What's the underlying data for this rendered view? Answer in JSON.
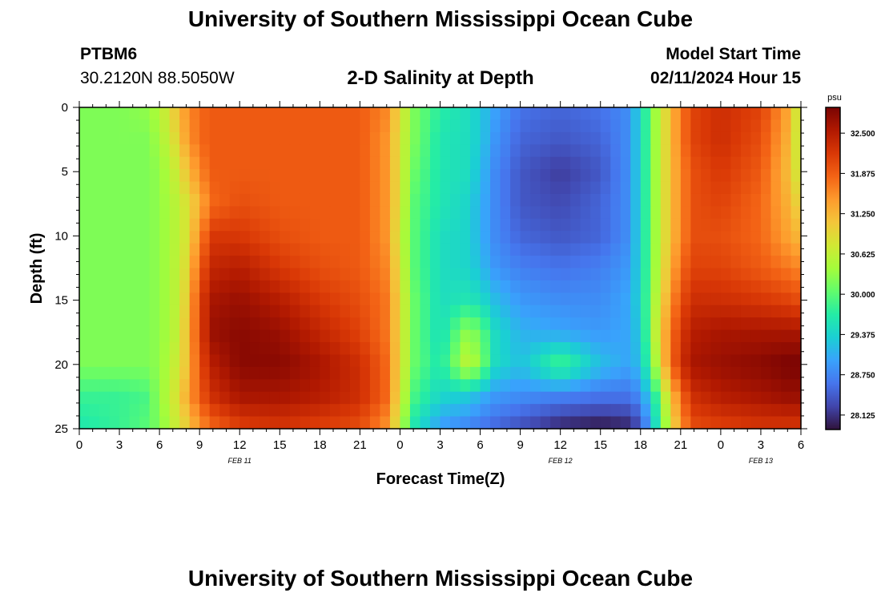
{
  "header": {
    "title": "University of Southern Mississippi Ocean Cube",
    "station": "PTBM6",
    "coordinates": "30.2120N  88.5050W",
    "subtitle": "2-D Salinity at Depth",
    "model_label": "Model Start Time",
    "model_time": "02/11/2024 Hour 15"
  },
  "footer": {
    "title": "University of Southern Mississippi Ocean Cube"
  },
  "chart_data": {
    "type": "heatmap",
    "title": "2-D Salinity at Depth",
    "xlabel": "Forecast Time(Z)",
    "ylabel": "Depth (ft)",
    "x_range_hours": [
      0,
      54
    ],
    "y_range_ft": [
      0,
      25
    ],
    "x_ticks": [
      {
        "hour": 0,
        "label": "0"
      },
      {
        "hour": 3,
        "label": "3"
      },
      {
        "hour": 6,
        "label": "6"
      },
      {
        "hour": 9,
        "label": "9"
      },
      {
        "hour": 12,
        "label": "12"
      },
      {
        "hour": 15,
        "label": "15"
      },
      {
        "hour": 18,
        "label": "18"
      },
      {
        "hour": 21,
        "label": "21"
      },
      {
        "hour": 24,
        "label": "0"
      },
      {
        "hour": 27,
        "label": "3"
      },
      {
        "hour": 30,
        "label": "6"
      },
      {
        "hour": 33,
        "label": "9"
      },
      {
        "hour": 36,
        "label": "12"
      },
      {
        "hour": 39,
        "label": "15"
      },
      {
        "hour": 42,
        "label": "18"
      },
      {
        "hour": 45,
        "label": "21"
      },
      {
        "hour": 48,
        "label": "0"
      },
      {
        "hour": 51,
        "label": "3"
      },
      {
        "hour": 54,
        "label": "6"
      }
    ],
    "date_labels": [
      {
        "hour": 12,
        "label": "FEB 11"
      },
      {
        "hour": 36,
        "label": "FEB 12"
      },
      {
        "hour": 51,
        "label": "FEB 13"
      }
    ],
    "y_ticks": [
      0,
      5,
      10,
      15,
      20,
      25
    ],
    "colorbar": {
      "unit": "psu",
      "min": 27.9,
      "max": 32.9,
      "ticks": [
        "32.500",
        "31.875",
        "31.250",
        "30.625",
        "30.000",
        "29.375",
        "28.750",
        "28.125"
      ],
      "colors": [
        "#30123b",
        "#4145ab",
        "#4675ed",
        "#39a2fc",
        "#1bcfd4",
        "#24eca6",
        "#61fc6c",
        "#a4fc3b",
        "#d1e834",
        "#f3c63a",
        "#fe9b2d",
        "#f36315",
        "#d93806",
        "#b11901",
        "#7a0403"
      ]
    },
    "depth_levels_ft": [
      0,
      2.5,
      5,
      7.5,
      10,
      12.5,
      15,
      17.5,
      20,
      22.5,
      25
    ],
    "time_knots_hours": [
      0,
      3,
      5,
      6,
      7,
      8,
      9,
      10,
      12,
      15,
      18,
      21,
      23,
      24,
      25,
      27,
      29,
      30,
      31,
      33,
      36,
      39,
      41,
      42,
      43,
      44,
      45,
      46,
      48,
      51,
      53,
      54
    ],
    "salinity_psu": [
      [
        30.2,
        30.2,
        30.3,
        30.5,
        31.0,
        31.5,
        31.8,
        31.9,
        31.9,
        31.9,
        31.9,
        31.9,
        31.6,
        30.9,
        30.2,
        29.7,
        29.5,
        29.3,
        29.0,
        28.6,
        28.5,
        28.6,
        28.8,
        29.4,
        30.3,
        31.0,
        31.7,
        32.1,
        32.3,
        32.1,
        31.4,
        30.5
      ],
      [
        30.2,
        30.2,
        30.2,
        30.4,
        30.8,
        31.4,
        31.8,
        31.9,
        31.9,
        31.9,
        31.9,
        31.9,
        31.5,
        30.8,
        30.2,
        29.6,
        29.5,
        29.3,
        28.9,
        28.5,
        28.4,
        28.5,
        28.8,
        29.4,
        30.3,
        31.0,
        31.7,
        32.1,
        32.3,
        32.0,
        31.3,
        30.5
      ],
      [
        30.2,
        30.2,
        30.2,
        30.3,
        30.6,
        31.1,
        31.6,
        31.9,
        31.9,
        31.9,
        31.9,
        31.9,
        31.5,
        30.8,
        30.1,
        29.6,
        29.5,
        29.2,
        28.8,
        28.4,
        28.2,
        28.4,
        28.8,
        29.4,
        30.3,
        31.0,
        31.6,
        32.0,
        32.2,
        31.9,
        31.2,
        30.6
      ],
      [
        30.2,
        30.2,
        30.2,
        30.3,
        30.5,
        30.8,
        31.3,
        31.8,
        32.0,
        31.9,
        31.9,
        31.9,
        31.5,
        30.8,
        30.0,
        29.6,
        29.4,
        29.1,
        28.8,
        28.4,
        28.3,
        28.5,
        28.8,
        29.4,
        30.3,
        31.0,
        31.6,
        32.0,
        32.1,
        31.8,
        31.3,
        30.9
      ],
      [
        30.2,
        30.2,
        30.2,
        30.3,
        30.5,
        30.8,
        31.6,
        32.2,
        32.2,
        32.0,
        31.9,
        31.9,
        31.5,
        30.7,
        30.0,
        29.5,
        29.4,
        29.1,
        28.8,
        28.5,
        28.4,
        28.5,
        28.8,
        29.4,
        30.3,
        31.0,
        31.6,
        32.0,
        32.0,
        31.8,
        31.4,
        31.2
      ],
      [
        30.2,
        30.2,
        30.2,
        30.3,
        30.5,
        30.9,
        31.9,
        32.4,
        32.5,
        32.2,
        32.0,
        31.9,
        31.6,
        30.8,
        30.0,
        29.5,
        29.4,
        29.2,
        28.9,
        28.7,
        28.6,
        28.7,
        28.9,
        29.4,
        30.3,
        31.1,
        31.8,
        32.1,
        32.1,
        31.9,
        31.7,
        31.6
      ],
      [
        30.2,
        30.2,
        30.2,
        30.3,
        30.5,
        31.0,
        32.1,
        32.6,
        32.7,
        32.5,
        32.2,
        32.0,
        31.7,
        30.9,
        30.1,
        29.5,
        29.6,
        29.5,
        29.2,
        28.9,
        28.8,
        28.8,
        29.0,
        29.4,
        30.4,
        31.3,
        32.0,
        32.3,
        32.3,
        32.2,
        32.1,
        32.0
      ],
      [
        30.2,
        30.2,
        30.2,
        30.3,
        30.5,
        31.1,
        32.1,
        32.7,
        32.8,
        32.7,
        32.4,
        32.1,
        31.7,
        30.9,
        30.1,
        29.5,
        30.3,
        30.1,
        29.5,
        29.1,
        29.0,
        28.9,
        29.0,
        29.3,
        30.5,
        31.5,
        32.2,
        32.5,
        32.6,
        32.6,
        32.6,
        32.6
      ],
      [
        30.2,
        30.2,
        30.2,
        30.3,
        30.6,
        31.1,
        32.0,
        32.5,
        32.8,
        32.8,
        32.6,
        32.3,
        31.8,
        30.9,
        30.1,
        29.6,
        30.6,
        30.3,
        29.5,
        29.2,
        29.9,
        29.2,
        29.0,
        29.2,
        30.3,
        31.5,
        32.3,
        32.6,
        32.7,
        32.8,
        32.9,
        32.9
      ],
      [
        29.8,
        29.8,
        29.9,
        30.3,
        30.7,
        31.3,
        31.9,
        32.3,
        32.6,
        32.6,
        32.5,
        32.3,
        31.8,
        30.8,
        29.9,
        29.4,
        29.3,
        29.1,
        28.9,
        28.8,
        28.7,
        28.6,
        28.6,
        28.8,
        29.6,
        30.8,
        31.8,
        32.3,
        32.5,
        32.6,
        32.7,
        32.7
      ],
      [
        29.6,
        29.8,
        30.0,
        30.2,
        30.6,
        31.0,
        31.5,
        31.8,
        32.1,
        32.2,
        32.1,
        32.0,
        31.5,
        30.6,
        29.6,
        28.9,
        28.7,
        28.6,
        28.5,
        28.3,
        28.0,
        27.9,
        28.0,
        28.3,
        29.3,
        30.5,
        31.5,
        32.0,
        32.1,
        32.2,
        32.2,
        32.2
      ]
    ]
  }
}
